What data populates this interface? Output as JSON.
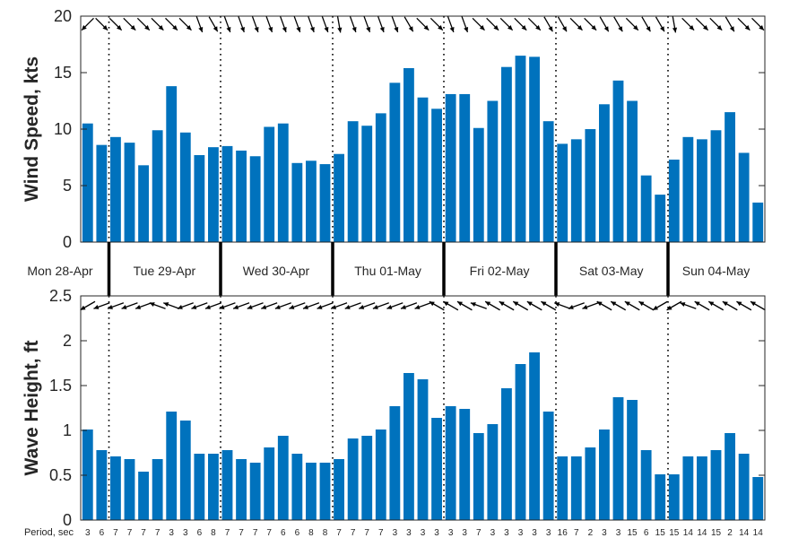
{
  "chart_data": [
    {
      "type": "bar",
      "ylabel": "Wind Speed, kts",
      "ylim": [
        0,
        20
      ],
      "yticks": [
        0,
        5,
        10,
        15,
        20
      ],
      "grid": false,
      "bar_color": "#0072BD",
      "values": [
        10.5,
        8.6,
        9.3,
        8.8,
        6.8,
        9.9,
        13.8,
        9.7,
        7.7,
        8.4,
        8.5,
        8.1,
        7.6,
        10.2,
        10.5,
        7.0,
        7.2,
        6.9,
        7.8,
        10.7,
        10.3,
        11.4,
        14.1,
        15.4,
        12.8,
        11.8,
        13.1,
        13.1,
        10.1,
        12.5,
        15.5,
        16.5,
        16.4,
        10.7,
        8.7,
        9.1,
        10.0,
        12.2,
        14.3,
        12.5,
        5.9,
        4.2,
        7.3,
        9.3,
        9.1,
        9.9,
        11.5,
        7.9,
        3.5
      ],
      "direction_arrows_deg": [
        225,
        315,
        315,
        315,
        315,
        315,
        315,
        315,
        290,
        300,
        290,
        290,
        290,
        290,
        290,
        290,
        290,
        290,
        280,
        290,
        290,
        290,
        290,
        300,
        315,
        315,
        290,
        290,
        315,
        315,
        315,
        315,
        315,
        300,
        300,
        315,
        315,
        300,
        300,
        315,
        300,
        300,
        280,
        315,
        315,
        315,
        300,
        315,
        315
      ]
    },
    {
      "type": "bar",
      "ylabel": "Wave Height, ft",
      "ylim": [
        0,
        2.5
      ],
      "yticks": [
        0,
        0.5,
        1,
        1.5,
        2,
        2.5
      ],
      "grid": false,
      "bar_color": "#0072BD",
      "values": [
        1.01,
        0.78,
        0.71,
        0.68,
        0.54,
        0.68,
        1.21,
        1.11,
        0.74,
        0.74,
        0.78,
        0.68,
        0.64,
        0.81,
        0.94,
        0.74,
        0.64,
        0.64,
        0.68,
        0.91,
        0.94,
        1.01,
        1.27,
        1.64,
        1.57,
        1.14,
        1.27,
        1.24,
        0.97,
        1.07,
        1.47,
        1.74,
        1.87,
        1.21,
        0.71,
        0.71,
        0.81,
        1.01,
        1.37,
        1.34,
        0.78,
        0.51,
        0.51,
        0.71,
        0.71,
        0.78,
        0.97,
        0.74,
        0.48
      ],
      "direction_arrows_deg": [
        210,
        200,
        200,
        200,
        200,
        160,
        160,
        200,
        200,
        200,
        200,
        200,
        200,
        200,
        200,
        200,
        200,
        200,
        200,
        200,
        200,
        200,
        200,
        200,
        200,
        150,
        150,
        150,
        160,
        150,
        150,
        150,
        150,
        150,
        160,
        200,
        200,
        150,
        150,
        150,
        150,
        210,
        210,
        160,
        150,
        150,
        150,
        150,
        150
      ],
      "period_title": "Period, sec",
      "periods": [
        "3",
        "6",
        "7",
        "7",
        "7",
        "7",
        "3",
        "3",
        "6",
        "8",
        "7",
        "7",
        "7",
        "7",
        "6",
        "6",
        "8",
        "8",
        "7",
        "7",
        "7",
        "7",
        "3",
        "3",
        "3",
        "3",
        "3",
        "3",
        "7",
        "3",
        "3",
        "3",
        "3",
        "3",
        "16",
        "7",
        "2",
        "3",
        "3",
        "15",
        "6",
        "15",
        "15",
        "14",
        "14",
        "15",
        "2",
        "14",
        "14"
      ]
    }
  ],
  "days": [
    "Mon 28-Apr",
    "Tue 29-Apr",
    "Wed 30-Apr",
    "Thu 01-May",
    "Fri 02-May",
    "Sat 03-May",
    "Sun 04-May"
  ],
  "day_start_index": [
    0,
    2,
    10,
    18,
    26,
    34,
    42
  ],
  "day_end_index": [
    1,
    9,
    17,
    25,
    33,
    41,
    48
  ]
}
